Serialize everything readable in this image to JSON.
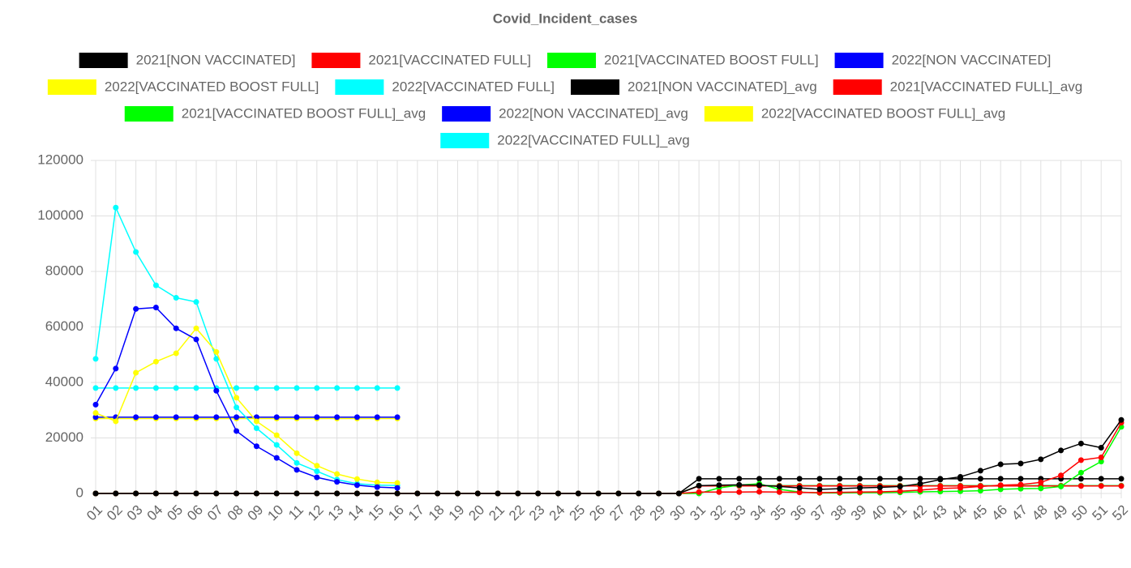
{
  "chart_data": {
    "type": "line",
    "title": "Covid_Incident_cases",
    "categories": [
      "01",
      "02",
      "03",
      "04",
      "05",
      "06",
      "07",
      "08",
      "09",
      "10",
      "11",
      "12",
      "13",
      "14",
      "15",
      "16",
      "17",
      "18",
      "19",
      "20",
      "21",
      "22",
      "23",
      "24",
      "25",
      "26",
      "27",
      "28",
      "29",
      "30",
      "31",
      "32",
      "33",
      "34",
      "35",
      "36",
      "37",
      "38",
      "39",
      "40",
      "41",
      "42",
      "43",
      "44",
      "45",
      "46",
      "47",
      "48",
      "49",
      "50",
      "51",
      "52"
    ],
    "ylim": [
      0,
      120000
    ],
    "yticks": [
      0,
      20000,
      40000,
      60000,
      80000,
      100000,
      120000
    ],
    "grid": true,
    "series": [
      {
        "name": "2021[NON VACCINATED]",
        "color": "#000000",
        "values": [
          0,
          0,
          0,
          0,
          0,
          0,
          0,
          0,
          0,
          0,
          0,
          0,
          0,
          0,
          0,
          0,
          0,
          0,
          0,
          0,
          0,
          0,
          0,
          0,
          0,
          0,
          0,
          0,
          0,
          0,
          2800,
          3000,
          3100,
          3000,
          2500,
          2000,
          1500,
          1700,
          2000,
          2200,
          2500,
          3500,
          5000,
          6000,
          8200,
          10500,
          10800,
          12300,
          15500,
          18000,
          16500,
          26500
        ]
      },
      {
        "name": "2021[VACCINATED FULL]",
        "color": "#ff0000",
        "values": [
          0,
          0,
          0,
          0,
          0,
          0,
          0,
          0,
          0,
          0,
          0,
          0,
          0,
          0,
          0,
          0,
          0,
          0,
          0,
          0,
          0,
          0,
          0,
          0,
          0,
          0,
          0,
          0,
          0,
          0,
          500,
          500,
          500,
          600,
          500,
          400,
          300,
          400,
          500,
          600,
          800,
          1200,
          1800,
          2000,
          2500,
          3000,
          3200,
          4000,
          6500,
          12000,
          13000,
          25500
        ]
      },
      {
        "name": "2021[VACCINATED BOOST FULL]",
        "color": "#00ff00",
        "values": [
          0,
          0,
          0,
          0,
          0,
          0,
          0,
          0,
          0,
          0,
          0,
          0,
          0,
          0,
          0,
          0,
          0,
          0,
          0,
          0,
          0,
          0,
          0,
          0,
          0,
          0,
          0,
          0,
          0,
          0,
          0,
          2000,
          3000,
          3500,
          1500,
          500,
          200,
          200,
          300,
          300,
          400,
          600,
          700,
          800,
          1000,
          1500,
          1700,
          1800,
          2500,
          7500,
          11500,
          24000
        ]
      },
      {
        "name": "2022[NON VACCINATED]",
        "color": "#0000ff",
        "values": [
          32000,
          45000,
          66500,
          67000,
          59500,
          55500,
          37000,
          22500,
          17000,
          12800,
          8500,
          5800,
          4200,
          3000,
          2300,
          2000,
          null,
          null,
          null,
          null,
          null,
          null,
          null,
          null,
          null,
          null,
          null,
          null,
          null,
          null,
          null,
          null,
          null,
          null,
          null,
          null,
          null,
          null,
          null,
          null,
          null,
          null,
          null,
          null,
          null,
          null,
          null,
          null,
          null,
          null,
          null,
          null
        ]
      },
      {
        "name": "2022[VACCINATED BOOST FULL]",
        "color": "#ffff00",
        "values": [
          29000,
          26000,
          43500,
          47500,
          50500,
          59500,
          51000,
          34500,
          26000,
          21000,
          14500,
          10000,
          7000,
          5200,
          4000,
          3800,
          null,
          null,
          null,
          null,
          null,
          null,
          null,
          null,
          null,
          null,
          null,
          null,
          null,
          null,
          null,
          null,
          null,
          null,
          null,
          null,
          null,
          null,
          null,
          null,
          null,
          null,
          null,
          null,
          null,
          null,
          null,
          null,
          null,
          null,
          null,
          null
        ]
      },
      {
        "name": "2022[VACCINATED FULL]",
        "color": "#00ffff",
        "values": [
          48500,
          103000,
          87000,
          75000,
          70500,
          69000,
          48500,
          31000,
          23500,
          17500,
          11000,
          8000,
          5000,
          3500,
          3000,
          2900,
          null,
          null,
          null,
          null,
          null,
          null,
          null,
          null,
          null,
          null,
          null,
          null,
          null,
          null,
          null,
          null,
          null,
          null,
          null,
          null,
          null,
          null,
          null,
          null,
          null,
          null,
          null,
          null,
          null,
          null,
          null,
          null,
          null,
          null,
          null,
          null
        ]
      },
      {
        "name": "2021[NON VACCINATED]_avg",
        "color": "#000000",
        "values": [
          0,
          0,
          0,
          0,
          0,
          0,
          0,
          0,
          0,
          0,
          0,
          0,
          0,
          0,
          0,
          0,
          0,
          0,
          0,
          0,
          0,
          0,
          0,
          0,
          0,
          0,
          0,
          0,
          0,
          0,
          5300,
          5300,
          5300,
          5300,
          5300,
          5300,
          5300,
          5300,
          5300,
          5300,
          5300,
          5300,
          5300,
          5300,
          5300,
          5300,
          5300,
          5300,
          5300,
          5300,
          5300,
          5300
        ]
      },
      {
        "name": "2021[VACCINATED FULL]_avg",
        "color": "#ff0000",
        "values": [
          0,
          0,
          0,
          0,
          0,
          0,
          0,
          0,
          0,
          0,
          0,
          0,
          0,
          0,
          0,
          0,
          0,
          0,
          0,
          0,
          0,
          0,
          0,
          0,
          0,
          0,
          0,
          0,
          0,
          0,
          2700,
          2700,
          2700,
          2700,
          2700,
          2700,
          2700,
          2700,
          2700,
          2700,
          2700,
          2700,
          2700,
          2700,
          2700,
          2700,
          2700,
          2700,
          2700,
          2700,
          2700,
          2700
        ]
      },
      {
        "name": "2021[VACCINATED BOOST FULL]_avg",
        "color": "#00ff00",
        "values": [
          0,
          0,
          0,
          0,
          0,
          0,
          0,
          0,
          0,
          0,
          0,
          0,
          0,
          0,
          0,
          0,
          0,
          0,
          0,
          0,
          0,
          0,
          0,
          0,
          0,
          0,
          0,
          0,
          0,
          0,
          2800,
          2800,
          2800,
          2800,
          2800,
          2800,
          2800,
          2800,
          2800,
          2800,
          2800,
          2800,
          2800,
          2800,
          2800,
          2800,
          2800,
          2800,
          2800,
          2800,
          2800,
          2800
        ]
      },
      {
        "name": "2022[NON VACCINATED]_avg",
        "color": "#0000ff",
        "values": [
          27500,
          27500,
          27500,
          27500,
          27500,
          27500,
          27500,
          27500,
          27500,
          27500,
          27500,
          27500,
          27500,
          27500,
          27500,
          27500,
          null,
          null,
          null,
          null,
          null,
          null,
          null,
          null,
          null,
          null,
          null,
          null,
          null,
          null,
          null,
          null,
          null,
          null,
          null,
          null,
          null,
          null,
          null,
          null,
          null,
          null,
          null,
          null,
          null,
          null,
          null,
          null,
          null,
          null,
          null,
          null
        ]
      },
      {
        "name": "2022[VACCINATED BOOST FULL]_avg",
        "color": "#ffff00",
        "values": [
          27000,
          27000,
          27000,
          27000,
          27000,
          27000,
          27000,
          27000,
          27000,
          27000,
          27000,
          27000,
          27000,
          27000,
          27000,
          27000,
          null,
          null,
          null,
          null,
          null,
          null,
          null,
          null,
          null,
          null,
          null,
          null,
          null,
          null,
          null,
          null,
          null,
          null,
          null,
          null,
          null,
          null,
          null,
          null,
          null,
          null,
          null,
          null,
          null,
          null,
          null,
          null,
          null,
          null,
          null,
          null
        ]
      },
      {
        "name": "2022[VACCINATED FULL]_avg",
        "color": "#00ffff",
        "values": [
          38000,
          38000,
          38000,
          38000,
          38000,
          38000,
          38000,
          38000,
          38000,
          38000,
          38000,
          38000,
          38000,
          38000,
          38000,
          38000,
          null,
          null,
          null,
          null,
          null,
          null,
          null,
          null,
          null,
          null,
          null,
          null,
          null,
          null,
          null,
          null,
          null,
          null,
          null,
          null,
          null,
          null,
          null,
          null,
          null,
          null,
          null,
          null,
          null,
          null,
          null,
          null,
          null,
          null,
          null,
          null
        ]
      }
    ]
  }
}
